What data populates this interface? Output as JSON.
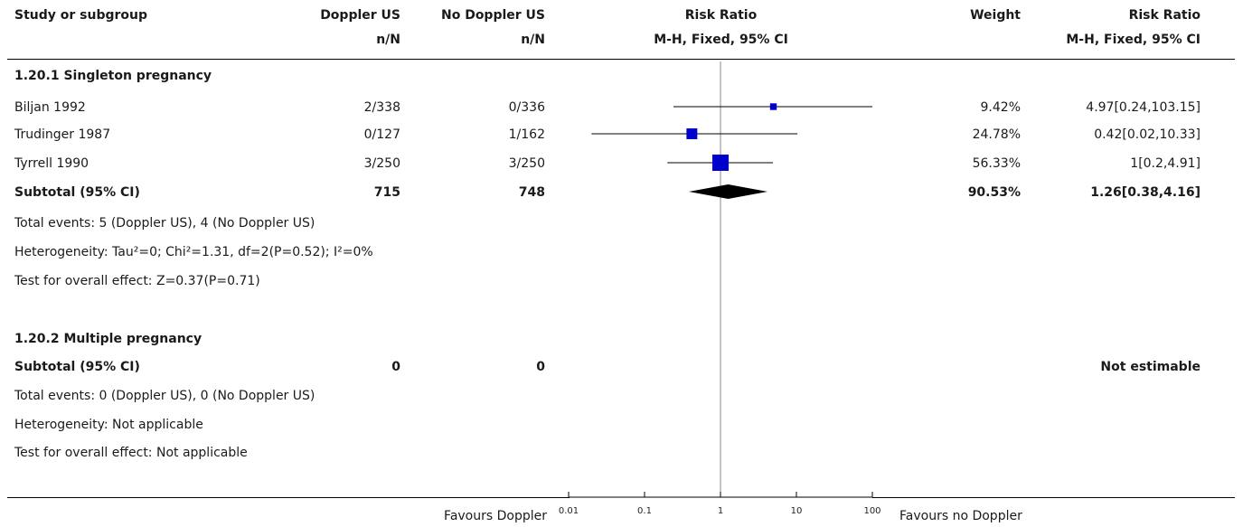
{
  "header": {
    "study": "Study or subgroup",
    "exp": "Doppler US",
    "ctl": "No Doppler US",
    "exp_sub": "n/N",
    "ctl_sub": "n/N",
    "rr": "Risk Ratio",
    "rr_sub": "M-H, Fixed, 95% CI",
    "weight": "Weight",
    "rr2": "Risk Ratio",
    "rr2_sub": "M-H, Fixed, 95% CI"
  },
  "groups": [
    {
      "title": "1.20.1 Singleton pregnancy",
      "studies": [
        {
          "name": "Biljan 1992",
          "exp": "2/338",
          "ctl": "0/336",
          "weight": "9.42%",
          "ci": "4.97[0.24,103.15]"
        },
        {
          "name": "Trudinger 1987",
          "exp": "0/127",
          "ctl": "1/162",
          "weight": "24.78%",
          "ci": "0.42[0.02,10.33]"
        },
        {
          "name": "Tyrrell 1990",
          "exp": "3/250",
          "ctl": "3/250",
          "weight": "56.33%",
          "ci": "1[0.2,4.91]"
        }
      ],
      "subtotal": {
        "label": "Subtotal (95% CI)",
        "exp": "715",
        "ctl": "748",
        "weight": "90.53%",
        "ci": "1.26[0.38,4.16]"
      },
      "events": "Total events: 5 (Doppler US), 4 (No Doppler US)",
      "heterogeneity": "Heterogeneity: Tau²=0; Chi²=1.31, df=2(P=0.52); I²=0%",
      "overall": "Test for overall effect: Z=0.37(P=0.71)"
    },
    {
      "title": "1.20.2 Multiple pregnancy",
      "studies": [],
      "subtotal": {
        "label": "Subtotal (95% CI)",
        "exp": "0",
        "ctl": "0",
        "weight": "",
        "ci": "Not estimable"
      },
      "events": "Total events: 0 (Doppler US), 0 (No Doppler US)",
      "heterogeneity": "Heterogeneity: Not applicable",
      "overall": "Test for overall effect: Not applicable"
    }
  ],
  "footer": {
    "favours_left": "Favours Doppler",
    "favours_right": "Favours no Doppler"
  },
  "chart_data": {
    "type": "forest",
    "scale": "log",
    "xlim": [
      0.01,
      100
    ],
    "ticks": [
      "0.01",
      "0.1",
      "1",
      "10",
      "100"
    ],
    "tick_values": [
      0.01,
      0.1,
      1,
      10,
      100
    ],
    "null_line": 1,
    "marker_color": "#0000cc",
    "diamond_color": "#000000",
    "studies": [
      {
        "name": "Biljan 1992",
        "rr": 4.97,
        "lower": 0.24,
        "upper": 103.15,
        "weight": 9.42
      },
      {
        "name": "Trudinger 1987",
        "rr": 0.42,
        "lower": 0.02,
        "upper": 10.33,
        "weight": 24.78
      },
      {
        "name": "Tyrrell 1990",
        "rr": 1,
        "lower": 0.2,
        "upper": 4.91,
        "weight": 56.33
      }
    ],
    "subtotal": {
      "rr": 1.26,
      "lower": 0.38,
      "upper": 4.16
    }
  }
}
